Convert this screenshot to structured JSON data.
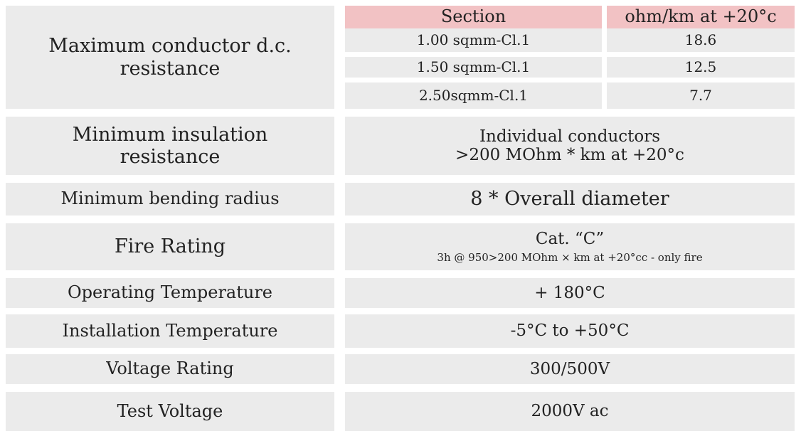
{
  "header": {
    "section": "Section",
    "resistance_unit": "ohm/km at +20°c"
  },
  "max_resistance": {
    "label_line1": "Maximum conductor d.c.",
    "label_line2": "resistance",
    "rows": [
      {
        "section": "1.00 sqmm-Cl.1",
        "value": "18.6"
      },
      {
        "section": "1.50 sqmm-Cl.1",
        "value": "12.5"
      },
      {
        "section": "2.50sqmm-Cl.1",
        "value": "7.7"
      }
    ]
  },
  "min_insulation": {
    "label_line1": "Minimum insulation",
    "label_line2": "resistance",
    "value_line1": "Individual conductors",
    "value_line2": ">200 MOhm * km at +20°c"
  },
  "bending_radius": {
    "label": "Minimum bending radius",
    "value": "8 * Overall diameter"
  },
  "fire_rating": {
    "label": "Fire Rating",
    "value": "Cat. “C”",
    "note": "3h @ 950>200 MOhm × km at +20°cc - only fire"
  },
  "operating_temp": {
    "label": "Operating Temperature",
    "value": "+ 180°C"
  },
  "installation_temp": {
    "label": "Installation Temperature",
    "value": "-5°C to +50°C"
  },
  "voltage_rating": {
    "label": "Voltage Rating",
    "value": "300/500V"
  },
  "test_voltage": {
    "label": "Test Voltage",
    "value": "2000V ac"
  }
}
